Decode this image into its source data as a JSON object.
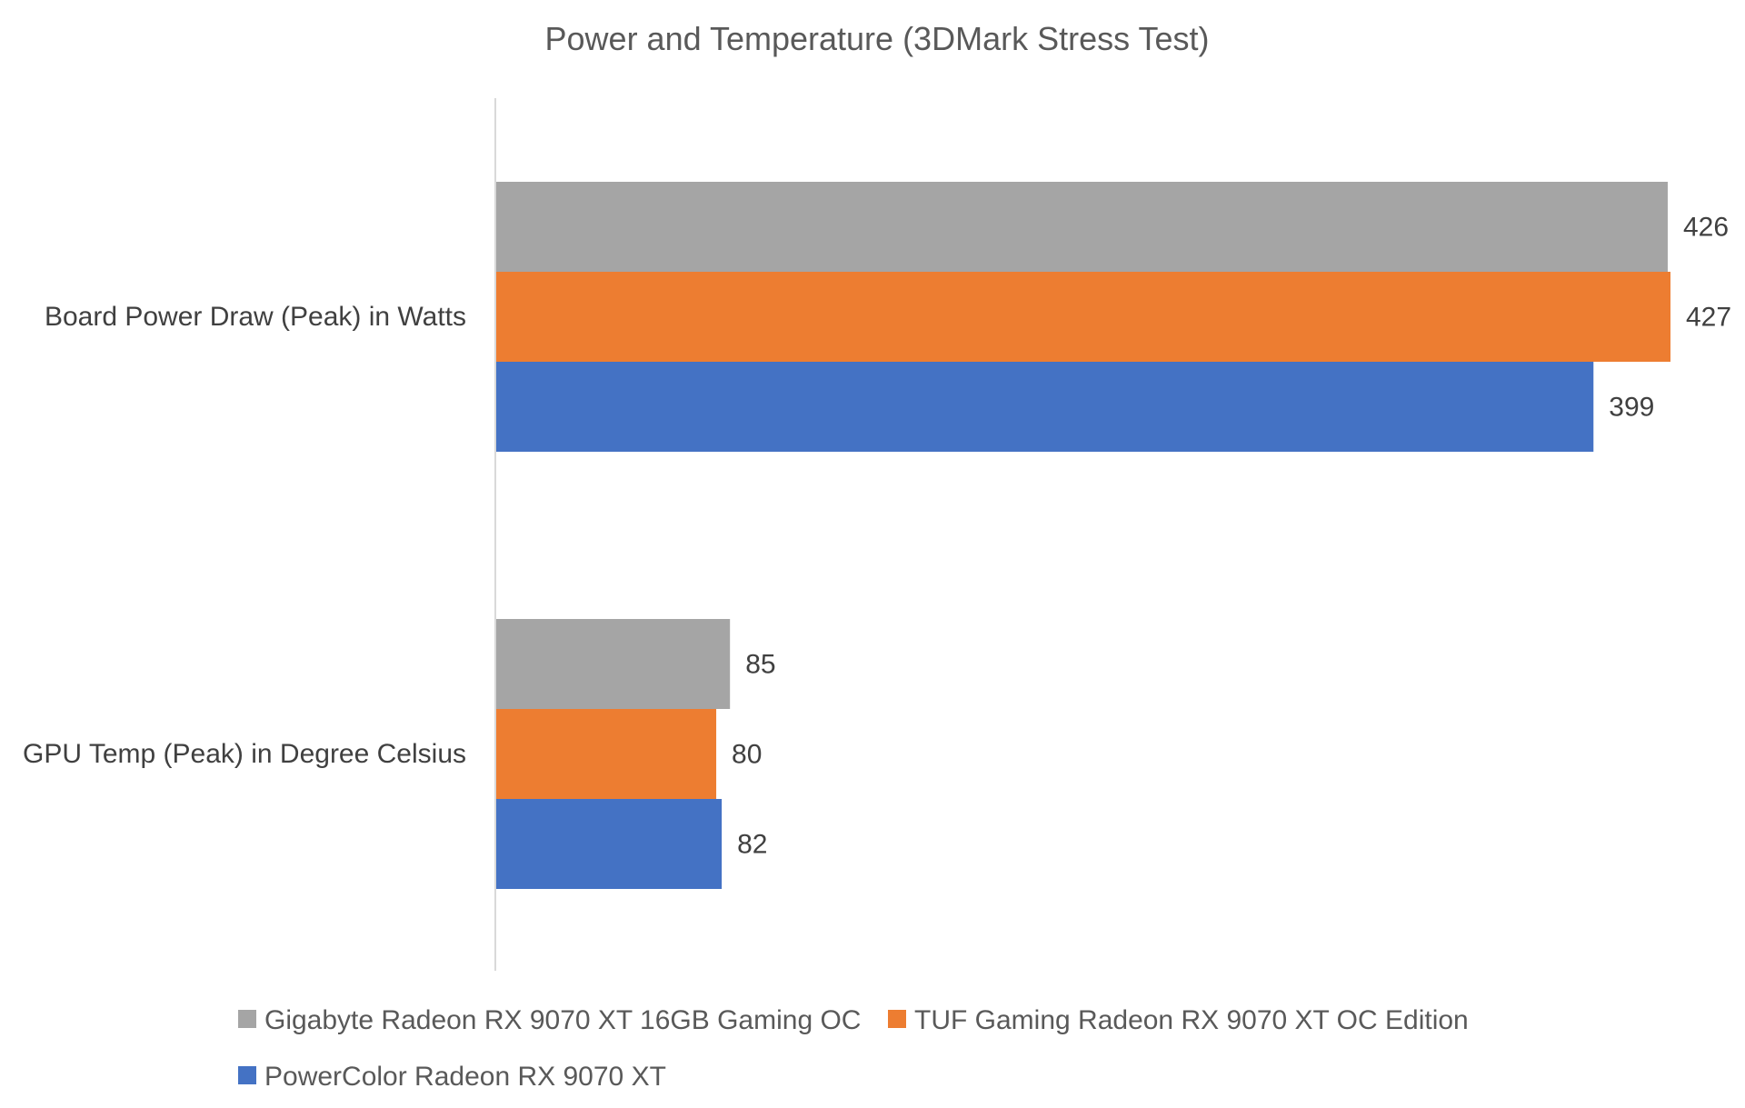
{
  "chart_data": {
    "type": "bar",
    "orientation": "horizontal",
    "title": "Power and Temperature (3DMark Stress Test)",
    "categories": [
      "Board Power Draw (Peak) in Watts",
      "GPU Temp (Peak) in Degree Celsius"
    ],
    "series": [
      {
        "name": "Gigabyte Radeon RX 9070 XT 16GB Gaming OC",
        "color": "#A5A5A5",
        "values": [
          426,
          85
        ]
      },
      {
        "name": "TUF Gaming Radeon RX 9070 XT OC Edition",
        "color": "#ED7D31",
        "values": [
          427,
          80
        ]
      },
      {
        "name": "PowerColor Radeon RX 9070 XT",
        "color": "#4472C4",
        "values": [
          399,
          82
        ]
      }
    ],
    "xlim": [
      0,
      427
    ],
    "grid": false,
    "data_labels": true,
    "legend_position": "bottom"
  }
}
